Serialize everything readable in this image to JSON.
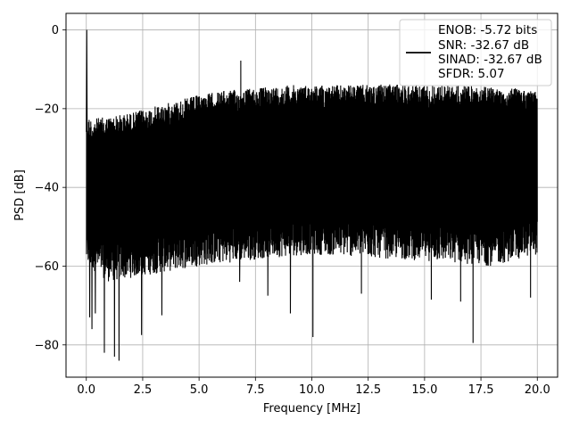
{
  "chart_data": {
    "type": "line",
    "title": "",
    "xlabel": "Frequency [MHz]",
    "ylabel": "PSD [dB]",
    "xlim": [
      -0.9,
      20.9
    ],
    "ylim": [
      -88.2,
      4.2
    ],
    "xticks": [
      0.0,
      2.5,
      5.0,
      7.5,
      10.0,
      12.5,
      15.0,
      17.5,
      20.0
    ],
    "xtick_labels": [
      "0.0",
      "2.5",
      "5.0",
      "7.5",
      "10.0",
      "12.5",
      "15.0",
      "17.5",
      "20.0"
    ],
    "yticks": [
      0,
      -20,
      -40,
      -60,
      -80
    ],
    "ytick_labels": [
      "0",
      "−20",
      "−40",
      "−60",
      "−80"
    ],
    "grid": true,
    "legend_position": "top-right",
    "series": [
      {
        "color": "#000000",
        "description": "dense noise-like PSD trace",
        "peak": {
          "x": 0.02,
          "y": 0.0
        },
        "spur": {
          "x": 6.85,
          "y": -7.8
        },
        "upper_envelope": {
          "x": [
            0.0,
            0.3,
            1.0,
            2.0,
            3.0,
            4.0,
            5.0,
            6.0,
            7.0,
            8.0,
            9.0,
            10.0,
            12.0,
            14.0,
            16.0,
            18.0,
            19.5,
            20.0
          ],
          "y": [
            -22.0,
            -22.5,
            -22.0,
            -21.0,
            -19.5,
            -18.0,
            -16.5,
            -15.5,
            -15.0,
            -14.5,
            -14.0,
            -14.0,
            -14.0,
            -13.8,
            -14.0,
            -14.5,
            -15.0,
            -15.5
          ]
        },
        "typical_lower_envelope": {
          "x": [
            0.0,
            1.0,
            3.0,
            5.0,
            8.0,
            10.0,
            13.0,
            16.0,
            18.0,
            20.0
          ],
          "y": [
            -58.0,
            -62.0,
            -60.0,
            -58.0,
            -56.0,
            -55.0,
            -56.0,
            -57.0,
            -58.0,
            -55.0
          ]
        },
        "deep_dips": [
          {
            "x": 0.15,
            "y": -73.0
          },
          {
            "x": 0.25,
            "y": -76.0
          },
          {
            "x": 0.4,
            "y": -72.0
          },
          {
            "x": 0.8,
            "y": -82.0
          },
          {
            "x": 1.25,
            "y": -83.0
          },
          {
            "x": 1.45,
            "y": -84.0
          },
          {
            "x": 2.45,
            "y": -77.5
          },
          {
            "x": 3.35,
            "y": -72.5
          },
          {
            "x": 6.8,
            "y": -64.0
          },
          {
            "x": 8.05,
            "y": -67.5
          },
          {
            "x": 9.05,
            "y": -72.0
          },
          {
            "x": 10.05,
            "y": -78.0
          },
          {
            "x": 12.2,
            "y": -67.0
          },
          {
            "x": 15.3,
            "y": -68.5
          },
          {
            "x": 16.6,
            "y": -69.0
          },
          {
            "x": 17.15,
            "y": -79.5
          },
          {
            "x": 19.7,
            "y": -68.0
          }
        ]
      }
    ],
    "legend": [
      "ENOB: -5.72 bits",
      "SNR: -32.67 dB",
      "SINAD: -32.67 dB",
      "SFDR: 5.07"
    ]
  }
}
